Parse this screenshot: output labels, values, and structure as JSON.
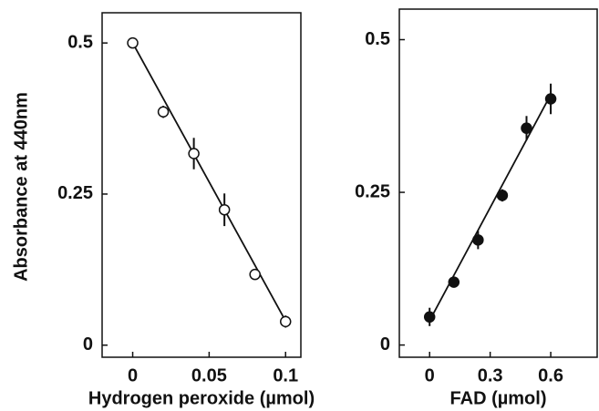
{
  "chart_data": [
    {
      "type": "scatter",
      "ylabel": "Absorbance at 440nm",
      "xlabel": "Hydrogen peroxide (µmol)",
      "x": [
        0,
        0.02,
        0.04,
        0.06,
        0.08,
        0.1
      ],
      "values": [
        0.5,
        0.386,
        0.317,
        0.224,
        0.117,
        0.039
      ],
      "errors": [
        0.005,
        0.01,
        0.026,
        0.027,
        0.008,
        0.01
      ],
      "marker": "open",
      "fit": {
        "x": [
          0,
          0.1
        ],
        "values": [
          0.5,
          0.04
        ]
      },
      "xlim": [
        -0.02,
        0.11
      ],
      "ylim": [
        -0.02,
        0.55
      ],
      "xticks": [
        0,
        0.05,
        0.1
      ],
      "yticks": [
        0,
        0.25,
        {
          "value": 0.5,
          "label": "0.5"
        }
      ]
    },
    {
      "type": "scatter",
      "xlabel": "FAD (µmol)",
      "x": [
        0,
        0.12,
        0.24,
        0.36,
        0.48,
        0.6
      ],
      "values": [
        0.046,
        0.103,
        0.172,
        0.245,
        0.355,
        0.403
      ],
      "errors": [
        0.015,
        0.005,
        0.015,
        0.01,
        0.02,
        0.025
      ],
      "marker": "filled",
      "fit": {
        "x": [
          0,
          0.6
        ],
        "values": [
          0.04,
          0.41
        ]
      },
      "xlim": [
        -0.15,
        0.83
      ],
      "ylim": [
        -0.02,
        0.55
      ],
      "xticks": [
        0,
        0.3,
        0.6
      ],
      "yticks": [
        0,
        0.25,
        {
          "value": 0.5,
          "label": "0.5"
        }
      ]
    }
  ]
}
